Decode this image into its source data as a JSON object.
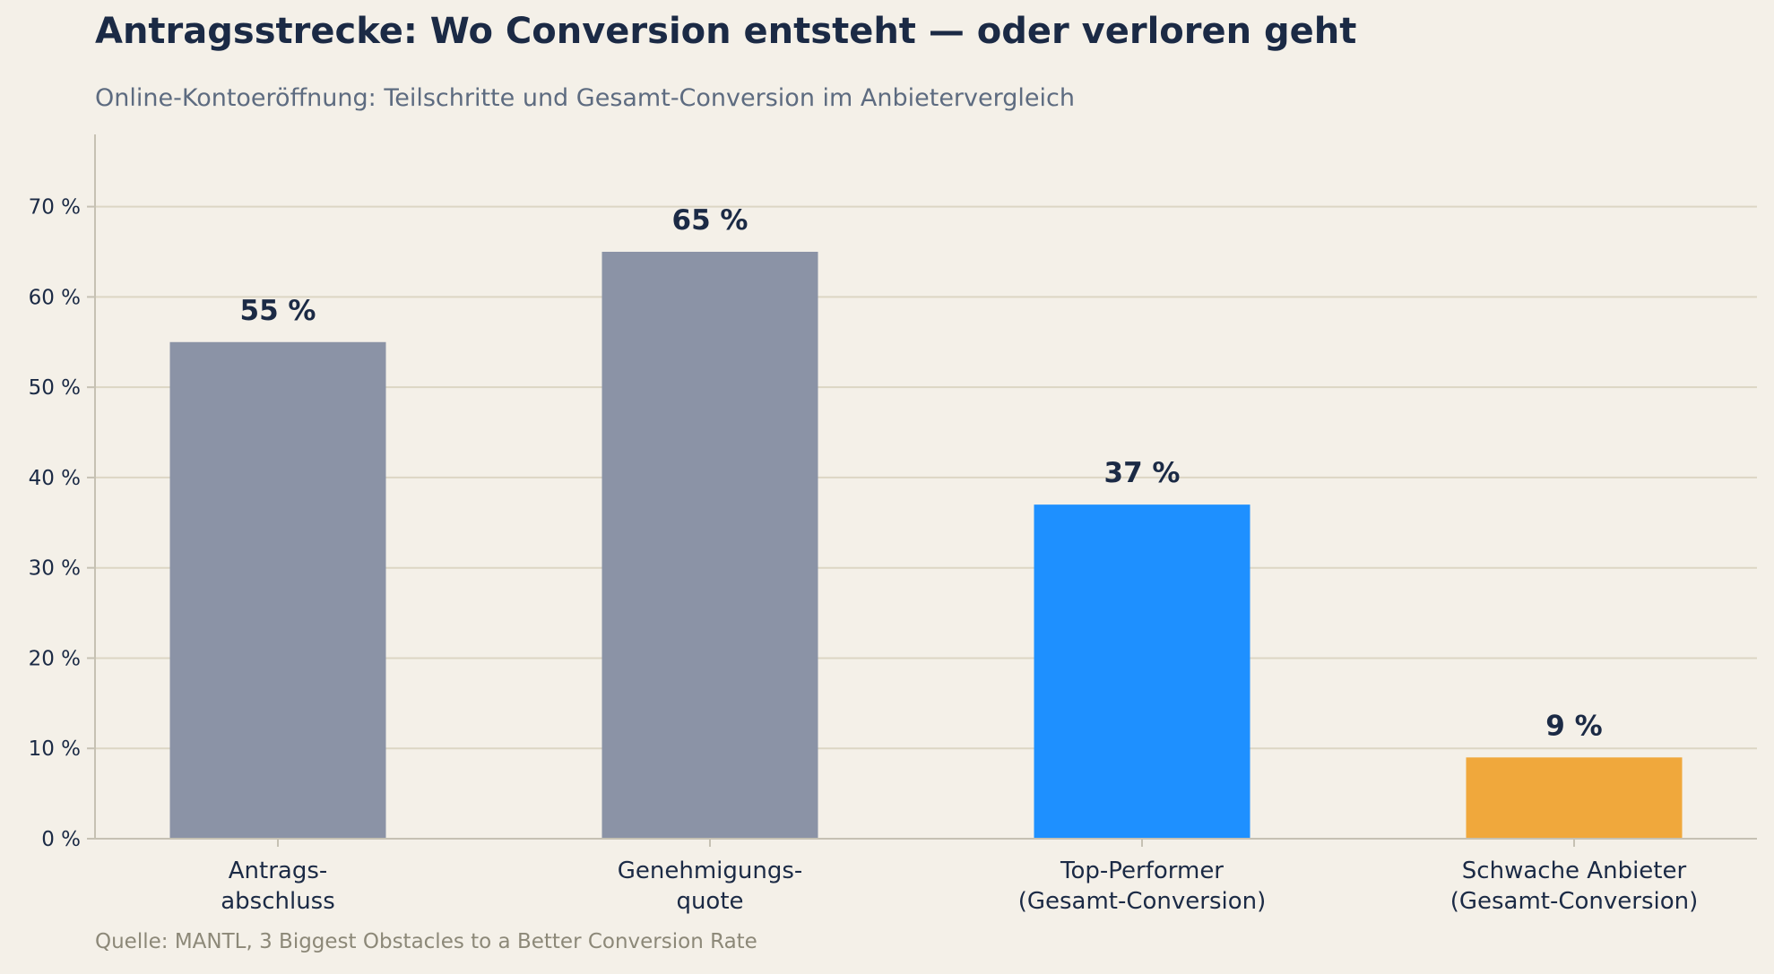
{
  "title": "Antragsstrecke: Wo Conversion entsteht — oder verloren geht",
  "subtitle": "Online-Kontoeröffnung: Teilschritte und Gesamt-Conversion im Anbietervergleich",
  "source": "Quelle: MANTL, 3 Biggest Obstacles to a Better Conversion Rate",
  "chart_data": {
    "type": "bar",
    "title": "Antragsstrecke: Wo Conversion entsteht — oder verloren geht",
    "subtitle": "Online-Kontoeröffnung: Teilschritte und Gesamt-Conversion im Anbietervergleich",
    "xlabel": "",
    "ylabel": "",
    "categories": [
      [
        "Antrags-",
        "abschluss"
      ],
      [
        "Genehmigungs-",
        "quote"
      ],
      [
        "Top-Performer",
        "(Gesamt-Conversion)"
      ],
      [
        "Schwache Anbieter",
        "(Gesamt-Conversion)"
      ]
    ],
    "values": [
      55,
      65,
      37,
      9
    ],
    "value_labels": [
      "55 %",
      "65 %",
      "37 %",
      "9 %"
    ],
    "bar_colors": [
      "#8b93a6",
      "#8b93a6",
      "#1e90ff",
      "#f0a83c"
    ],
    "ylim": [
      0,
      78
    ],
    "yticks": [
      0,
      10,
      20,
      30,
      40,
      50,
      60,
      70
    ],
    "ytick_labels": [
      "0 %",
      "10 %",
      "20 %",
      "30 %",
      "40 %",
      "50 %",
      "60 %",
      "70 %"
    ],
    "grid": true,
    "legend": "none"
  },
  "colors": {
    "background": "#f4f0e8",
    "grid": "#dcd6c4",
    "axis": "#c6c1b3",
    "text_dark": "#1b2a45"
  }
}
